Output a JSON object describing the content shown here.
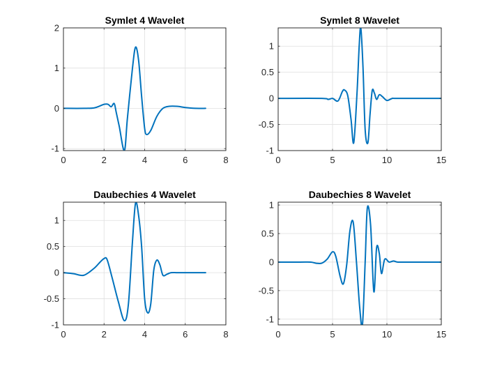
{
  "figure": {
    "background": "#ffffff"
  },
  "chart_data": [
    {
      "type": "line",
      "title": "Symlet 4 Wavelet",
      "xlabel": "",
      "ylabel": "",
      "xlim": [
        0,
        8
      ],
      "ylim": [
        -1.05,
        2
      ],
      "xticks": [
        0,
        2,
        4,
        6,
        8
      ],
      "yticks": [
        -1,
        0,
        1,
        2
      ],
      "xtick_labels": [
        "0",
        "2",
        "4",
        "6",
        "8"
      ],
      "ytick_labels": [
        "-1",
        "0",
        "1",
        "2"
      ],
      "grid": true,
      "color": "#0072bd",
      "x": [
        0,
        1.0,
        1.5,
        1.8,
        2.0,
        2.2,
        2.35,
        2.5,
        2.6,
        2.75,
        3.0,
        3.15,
        3.4,
        3.55,
        3.7,
        3.85,
        4.0,
        4.1,
        4.3,
        4.6,
        4.9,
        5.2,
        5.6,
        6.0,
        6.5,
        7.0
      ],
      "y": [
        0,
        0,
        0.01,
        0.06,
        0.1,
        0.1,
        0.04,
        0.12,
        -0.1,
        -0.45,
        -1.05,
        -0.25,
        1.0,
        1.52,
        1.2,
        0.3,
        -0.5,
        -0.65,
        -0.55,
        -0.2,
        0.0,
        0.05,
        0.05,
        0.02,
        0,
        0
      ]
    },
    {
      "type": "line",
      "title": "Symlet 8 Wavelet",
      "xlabel": "",
      "ylabel": "",
      "xlim": [
        0,
        15
      ],
      "ylim": [
        -1,
        1.35
      ],
      "xticks": [
        0,
        5,
        10,
        15
      ],
      "yticks": [
        -1,
        -0.5,
        0,
        0.5,
        1
      ],
      "xtick_labels": [
        "0",
        "5",
        "10",
        "15"
      ],
      "ytick_labels": [
        "-1",
        "-0.5",
        "0",
        "0.5",
        "1"
      ],
      "grid": true,
      "color": "#0072bd",
      "x": [
        0,
        4.0,
        4.6,
        5.0,
        5.5,
        5.9,
        6.1,
        6.4,
        6.7,
        6.95,
        7.25,
        7.45,
        7.6,
        7.8,
        8.0,
        8.25,
        8.45,
        8.65,
        8.85,
        9.05,
        9.3,
        9.6,
        10.0,
        10.5,
        11.0,
        15.0
      ],
      "y": [
        0,
        0,
        -0.02,
        0.0,
        -0.05,
        0.13,
        0.16,
        0.05,
        -0.4,
        -0.85,
        0.1,
        1.0,
        1.35,
        0.6,
        -0.6,
        -0.85,
        -0.3,
        0.15,
        0.1,
        -0.02,
        0.07,
        0.03,
        -0.04,
        0,
        0,
        0
      ]
    },
    {
      "type": "line",
      "title": "Daubechies 4 Wavelet",
      "xlabel": "",
      "ylabel": "",
      "xlim": [
        0,
        8
      ],
      "ylim": [
        -1,
        1.35
      ],
      "xticks": [
        0,
        2,
        4,
        6,
        8
      ],
      "yticks": [
        -1,
        -0.5,
        0,
        0.5,
        1
      ],
      "xtick_labels": [
        "0",
        "2",
        "4",
        "6",
        "8"
      ],
      "ytick_labels": [
        "-1",
        "-0.5",
        "0",
        "0.5",
        "1"
      ],
      "grid": true,
      "color": "#0072bd",
      "x": [
        0,
        0.5,
        1.0,
        1.5,
        1.8,
        2.0,
        2.15,
        2.4,
        2.7,
        3.0,
        3.2,
        3.4,
        3.55,
        3.7,
        3.85,
        4.0,
        4.15,
        4.3,
        4.45,
        4.6,
        4.75,
        4.9,
        5.1,
        5.3,
        5.6,
        6.0,
        7.0
      ],
      "y": [
        0,
        -0.02,
        -0.05,
        0.08,
        0.2,
        0.27,
        0.25,
        -0.1,
        -0.55,
        -0.92,
        -0.6,
        0.6,
        1.33,
        1.1,
        0.5,
        -0.5,
        -0.77,
        -0.6,
        0.05,
        0.24,
        0.15,
        -0.05,
        -0.03,
        0.0,
        0.0,
        0.0,
        0.0
      ]
    },
    {
      "type": "line",
      "title": "Daubechies 8 Wavelet",
      "xlabel": "",
      "ylabel": "",
      "xlim": [
        0,
        15
      ],
      "ylim": [
        -1.1,
        1.05
      ],
      "xticks": [
        0,
        5,
        10,
        15
      ],
      "yticks": [
        -1,
        -0.5,
        0,
        0.5,
        1
      ],
      "xtick_labels": [
        "0",
        "5",
        "10",
        "15"
      ],
      "ytick_labels": [
        "-1",
        "-0.5",
        "0",
        "0.5",
        "1"
      ],
      "grid": true,
      "color": "#0072bd",
      "x": [
        0,
        2.0,
        3.0,
        3.5,
        4.0,
        4.5,
        5.0,
        5.3,
        5.7,
        6.0,
        6.3,
        6.6,
        6.9,
        7.2,
        7.5,
        7.75,
        8.0,
        8.2,
        8.5,
        8.8,
        9.05,
        9.3,
        9.5,
        9.8,
        10.2,
        10.6,
        11.0,
        12.0,
        15.0
      ],
      "y": [
        0,
        0,
        0.0,
        -0.02,
        -0.02,
        0.05,
        0.18,
        0.1,
        -0.25,
        -0.38,
        -0.05,
        0.55,
        0.7,
        0.0,
        -0.8,
        -1.1,
        0.0,
        0.95,
        0.65,
        -0.52,
        0.25,
        0.15,
        -0.2,
        0.05,
        0.0,
        0.02,
        0,
        0,
        0
      ]
    }
  ]
}
